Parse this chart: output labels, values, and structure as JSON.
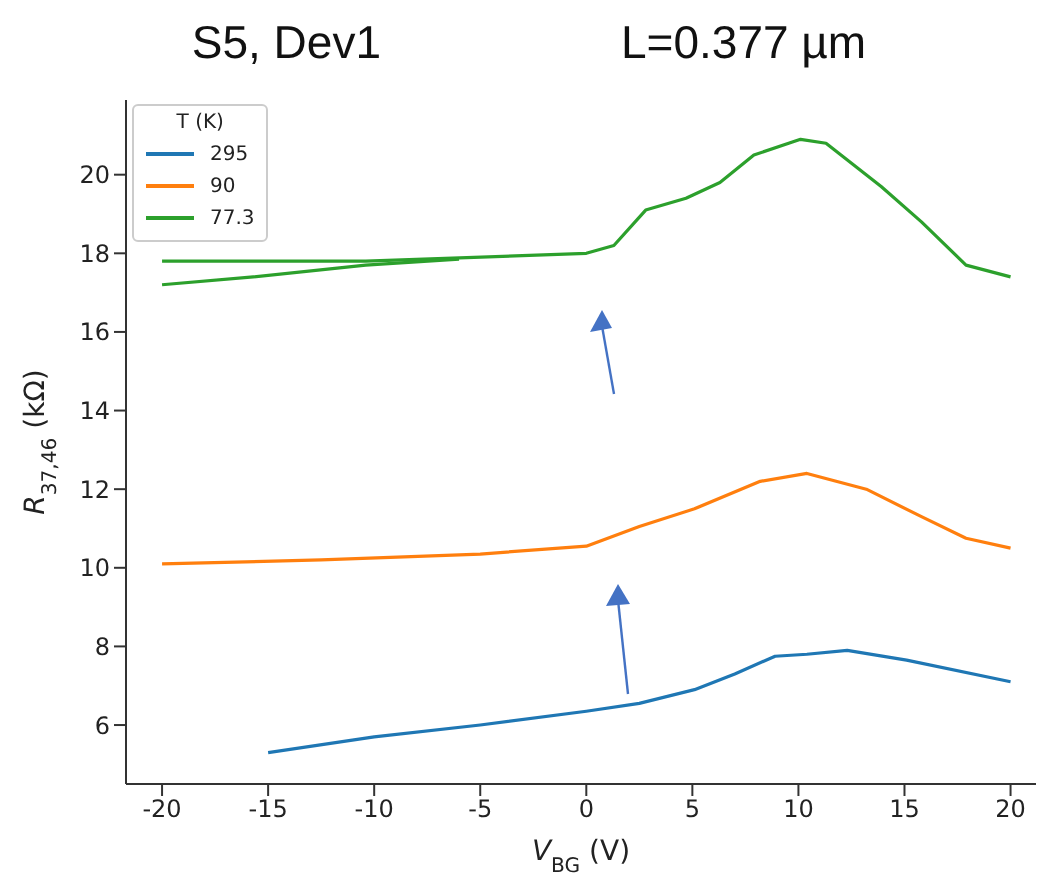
{
  "chart_data": {
    "type": "line",
    "title": "S5, Dev1",
    "subtitle": "L=0.377 µm",
    "xlabel": "V$_{BG}$ (V)",
    "ylabel": "R$_{37,46}$ (kΩ)",
    "legend_title": "T (K)",
    "xlim": [
      -21.7,
      21.2
    ],
    "ylim": [
      4.5,
      21.9
    ],
    "xticks": [
      -20,
      -15,
      -10,
      -5,
      0,
      5,
      10,
      15,
      20
    ],
    "yticks": [
      6,
      8,
      10,
      12,
      14,
      16,
      18,
      20
    ],
    "grid": false,
    "legend": "top left",
    "marker": "none",
    "line_style": "solid",
    "series": [
      {
        "name": "295",
        "color": "#1f77b4",
        "x": [
          -15,
          -10,
          -5,
          0,
          2.5,
          5.1,
          7,
          8.9,
          10.4,
          12.3,
          15.1,
          20
        ],
        "values": [
          5.3,
          5.7,
          6.0,
          6.35,
          6.55,
          6.9,
          7.3,
          7.75,
          7.8,
          7.9,
          7.65,
          7.1
        ]
      },
      {
        "name": "90",
        "color": "#ff7f0e",
        "x": [
          -20,
          -12.5,
          -5,
          0,
          2.5,
          5.1,
          8.2,
          10.4,
          13.2,
          15.8,
          17.9,
          20
        ],
        "values": [
          10.1,
          10.2,
          10.35,
          10.55,
          11.05,
          11.5,
          12.2,
          12.4,
          12.0,
          11.3,
          10.75,
          10.5
        ]
      },
      {
        "name": "77.3",
        "color": "#2ca02c",
        "x": [
          -20,
          -10.4,
          0,
          1.3,
          2.8,
          4.7,
          6.3,
          7.9,
          10.1,
          11.3,
          13.9,
          15.8,
          17.9,
          20
        ],
        "values": [
          17.8,
          17.8,
          18.0,
          18.2,
          19.1,
          19.4,
          19.8,
          20.5,
          20.9,
          20.8,
          19.7,
          18.8,
          17.7,
          17.4
        ]
      },
      {
        "color": "#2ca02c",
        "x": [
          -20,
          -15.7,
          -10.4,
          -6
        ],
        "values": [
          17.2,
          17.4,
          17.7,
          17.85
        ]
      }
    ]
  }
}
